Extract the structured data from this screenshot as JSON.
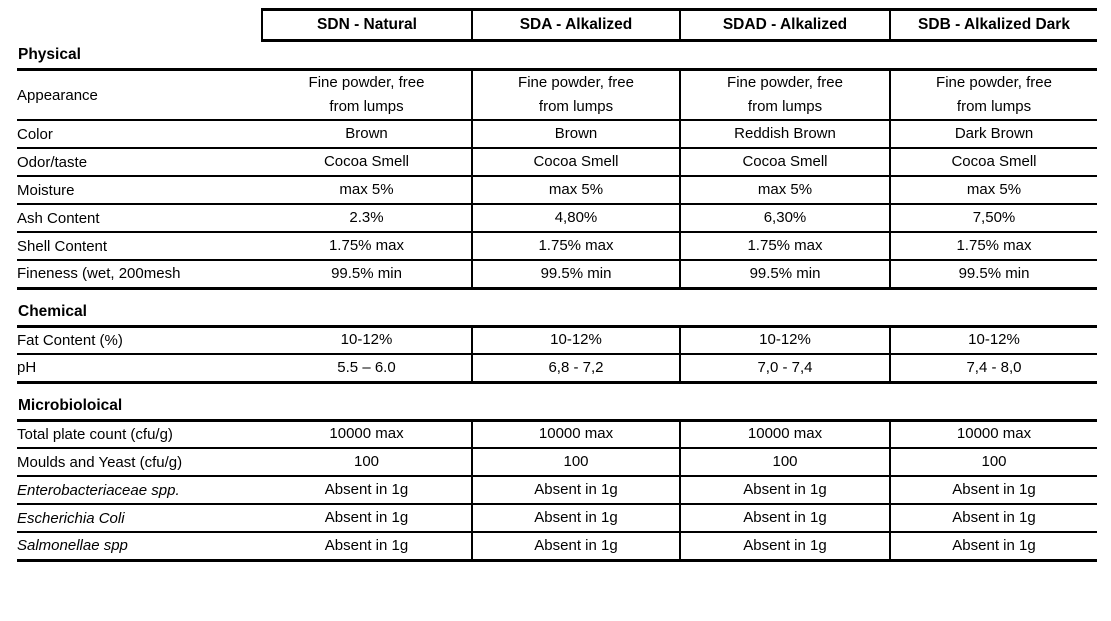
{
  "table": {
    "columns": [
      "SDN - Natural",
      "SDA - Alkalized",
      "SDAD - Alkalized",
      "SDB - Alkalized Dark"
    ],
    "sections": [
      {
        "title": "Physical",
        "rows": [
          {
            "label": "Appearance",
            "italic": false,
            "values": [
              "Fine powder, free\nfrom lumps",
              "Fine powder, free\nfrom lumps",
              "Fine powder, free\nfrom lumps",
              "Fine powder, free\nfrom lumps"
            ]
          },
          {
            "label": "Color",
            "italic": false,
            "values": [
              "Brown",
              "Brown",
              "Reddish Brown",
              "Dark Brown"
            ]
          },
          {
            "label": "Odor/taste",
            "italic": false,
            "values": [
              "Cocoa Smell",
              "Cocoa Smell",
              "Cocoa Smell",
              "Cocoa Smell"
            ]
          },
          {
            "label": "Moisture",
            "italic": false,
            "values": [
              "max 5%",
              "max 5%",
              "max 5%",
              "max 5%"
            ]
          },
          {
            "label": "Ash Content",
            "italic": false,
            "values": [
              "2.3%",
              "4,80%",
              "6,30%",
              "7,50%"
            ]
          },
          {
            "label": "Shell Content",
            "italic": false,
            "values": [
              "1.75% max",
              "1.75% max",
              "1.75% max",
              "1.75% max"
            ]
          },
          {
            "label": "Fineness (wet, 200mesh",
            "italic": false,
            "values": [
              "99.5% min",
              "99.5% min",
              "99.5% min",
              "99.5% min"
            ]
          }
        ]
      },
      {
        "title": "Chemical",
        "rows": [
          {
            "label": "Fat Content (%)",
            "italic": false,
            "values": [
              "10-12%",
              "10-12%",
              "10-12%",
              "10-12%"
            ]
          },
          {
            "label": "pH",
            "italic": false,
            "values": [
              "5.5 – 6.0",
              "6,8 - 7,2",
              "7,0 - 7,4",
              "7,4 - 8,0"
            ]
          }
        ]
      },
      {
        "title": "Microbioloical",
        "rows": [
          {
            "label": "Total plate count (cfu/g)",
            "italic": false,
            "values": [
              "10000 max",
              "10000 max",
              "10000 max",
              "10000 max"
            ]
          },
          {
            "label": "Moulds and Yeast (cfu/g)",
            "italic": false,
            "values": [
              "100",
              "100",
              "100",
              "100"
            ]
          },
          {
            "label": "Enterobacteriaceae spp.",
            "italic": true,
            "values": [
              "Absent in 1g",
              "Absent in 1g",
              "Absent in 1g",
              "Absent in 1g"
            ]
          },
          {
            "label": "Escherichia Coli",
            "italic": true,
            "values": [
              "Absent in 1g",
              "Absent in 1g",
              "Absent in 1g",
              "Absent in 1g"
            ]
          },
          {
            "label": "Salmonellae spp",
            "italic": true,
            "values": [
              "Absent in 1g",
              "Absent in 1g",
              "Absent in 1g",
              "Absent in 1g"
            ]
          }
        ]
      }
    ]
  }
}
